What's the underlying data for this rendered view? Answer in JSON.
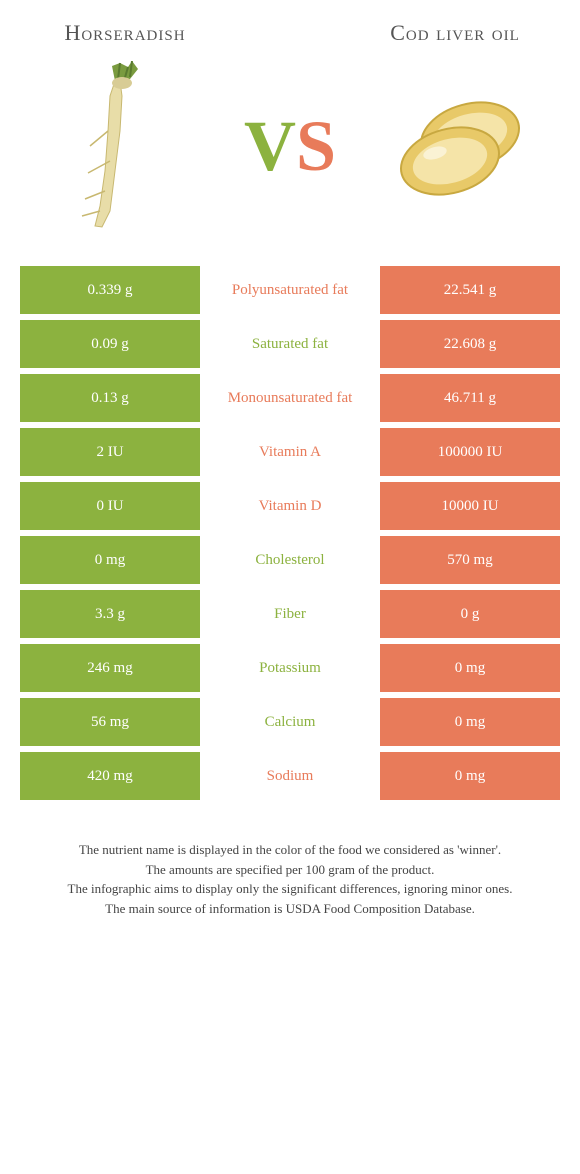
{
  "header": {
    "left_title": "Horseradish",
    "right_title": "Cod liver oil",
    "vs_v": "V",
    "vs_s": "S"
  },
  "colors": {
    "left": "#8cb23f",
    "right": "#e87b5a"
  },
  "rows": [
    {
      "left": "0.339 g",
      "label": "Polyunsaturated fat",
      "right": "22.541 g",
      "winner": "right"
    },
    {
      "left": "0.09 g",
      "label": "Saturated fat",
      "right": "22.608 g",
      "winner": "left"
    },
    {
      "left": "0.13 g",
      "label": "Monounsaturated fat",
      "right": "46.711 g",
      "winner": "right"
    },
    {
      "left": "2 IU",
      "label": "Vitamin A",
      "right": "100000 IU",
      "winner": "right"
    },
    {
      "left": "0 IU",
      "label": "Vitamin D",
      "right": "10000 IU",
      "winner": "right"
    },
    {
      "left": "0 mg",
      "label": "Cholesterol",
      "right": "570 mg",
      "winner": "left"
    },
    {
      "left": "3.3 g",
      "label": "Fiber",
      "right": "0 g",
      "winner": "left"
    },
    {
      "left": "246 mg",
      "label": "Potassium",
      "right": "0 mg",
      "winner": "left"
    },
    {
      "left": "56 mg",
      "label": "Calcium",
      "right": "0 mg",
      "winner": "left"
    },
    {
      "left": "420 mg",
      "label": "Sodium",
      "right": "0 mg",
      "winner": "right"
    }
  ],
  "footnotes": [
    "The nutrient name is displayed in the color of the food we considered as 'winner'.",
    "The amounts are specified per 100 gram of the product.",
    "The infographic aims to display only the significant differences, ignoring minor ones.",
    "The main source of information is USDA Food Composition Database."
  ]
}
